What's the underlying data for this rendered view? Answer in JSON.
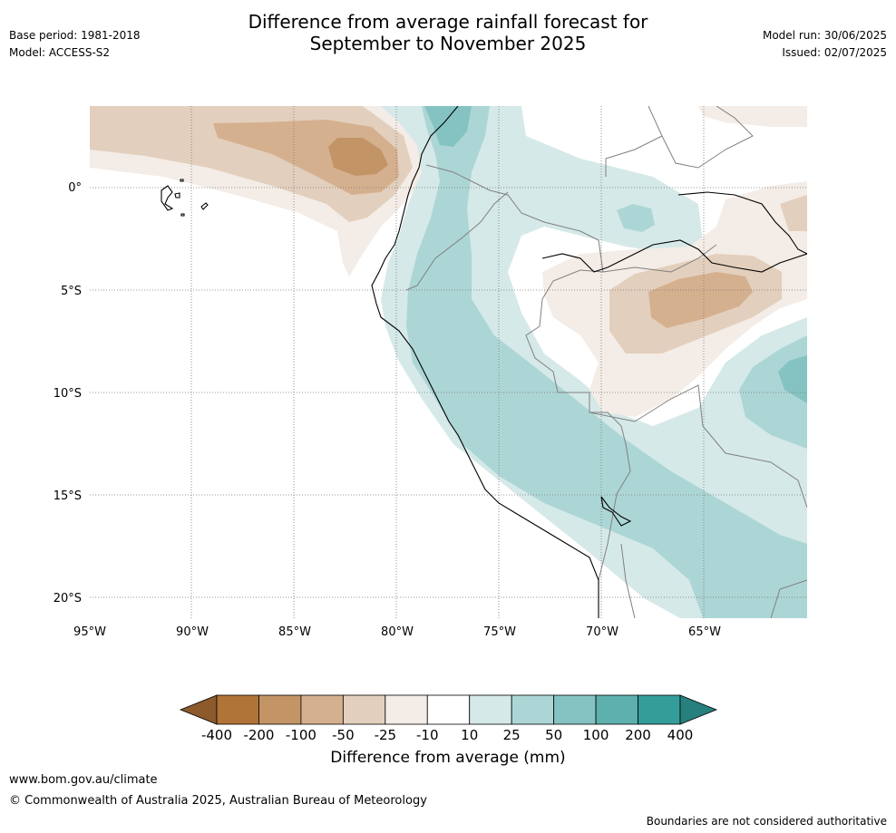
{
  "title": {
    "line1": "Difference from average rainfall forecast for",
    "line2": "September to November 2025"
  },
  "meta": {
    "base_period": "Base period: 1981-2018",
    "model": "Model: ACCESS-S2",
    "model_run": "Model run: 30/06/2025",
    "issued": "Issued: 02/07/2025"
  },
  "map": {
    "lat_labels": [
      "0°",
      "5°S",
      "10°S",
      "15°S",
      "20°S"
    ],
    "lon_labels": [
      "95°W",
      "90°W",
      "85°W",
      "80°W",
      "75°W",
      "70°W",
      "65°W"
    ],
    "grid": true,
    "colors": {
      "land_border": "#000000",
      "country_border": "#808080"
    }
  },
  "legend": {
    "title": "Difference from average (mm)",
    "ticks": [
      "-400",
      "-200",
      "-100",
      "-50",
      "-25",
      "-10",
      "10",
      "25",
      "50",
      "100",
      "200",
      "400"
    ],
    "colors": [
      "#8c5a2b",
      "#b07438",
      "#c29466",
      "#d5b08f",
      "#e3cfbd",
      "#f4ece6",
      "#ffffff",
      "#d5e9e8",
      "#acd6d5",
      "#84c3c2",
      "#5eb0ae",
      "#339d9a",
      "#27807d"
    ]
  },
  "footer": {
    "url": "www.bom.gov.au/climate",
    "copyright": "© Commonwealth of Australia 2025, Australian Bureau of Meteorology",
    "disclaimer": "Boundaries are not considered authoritative"
  }
}
